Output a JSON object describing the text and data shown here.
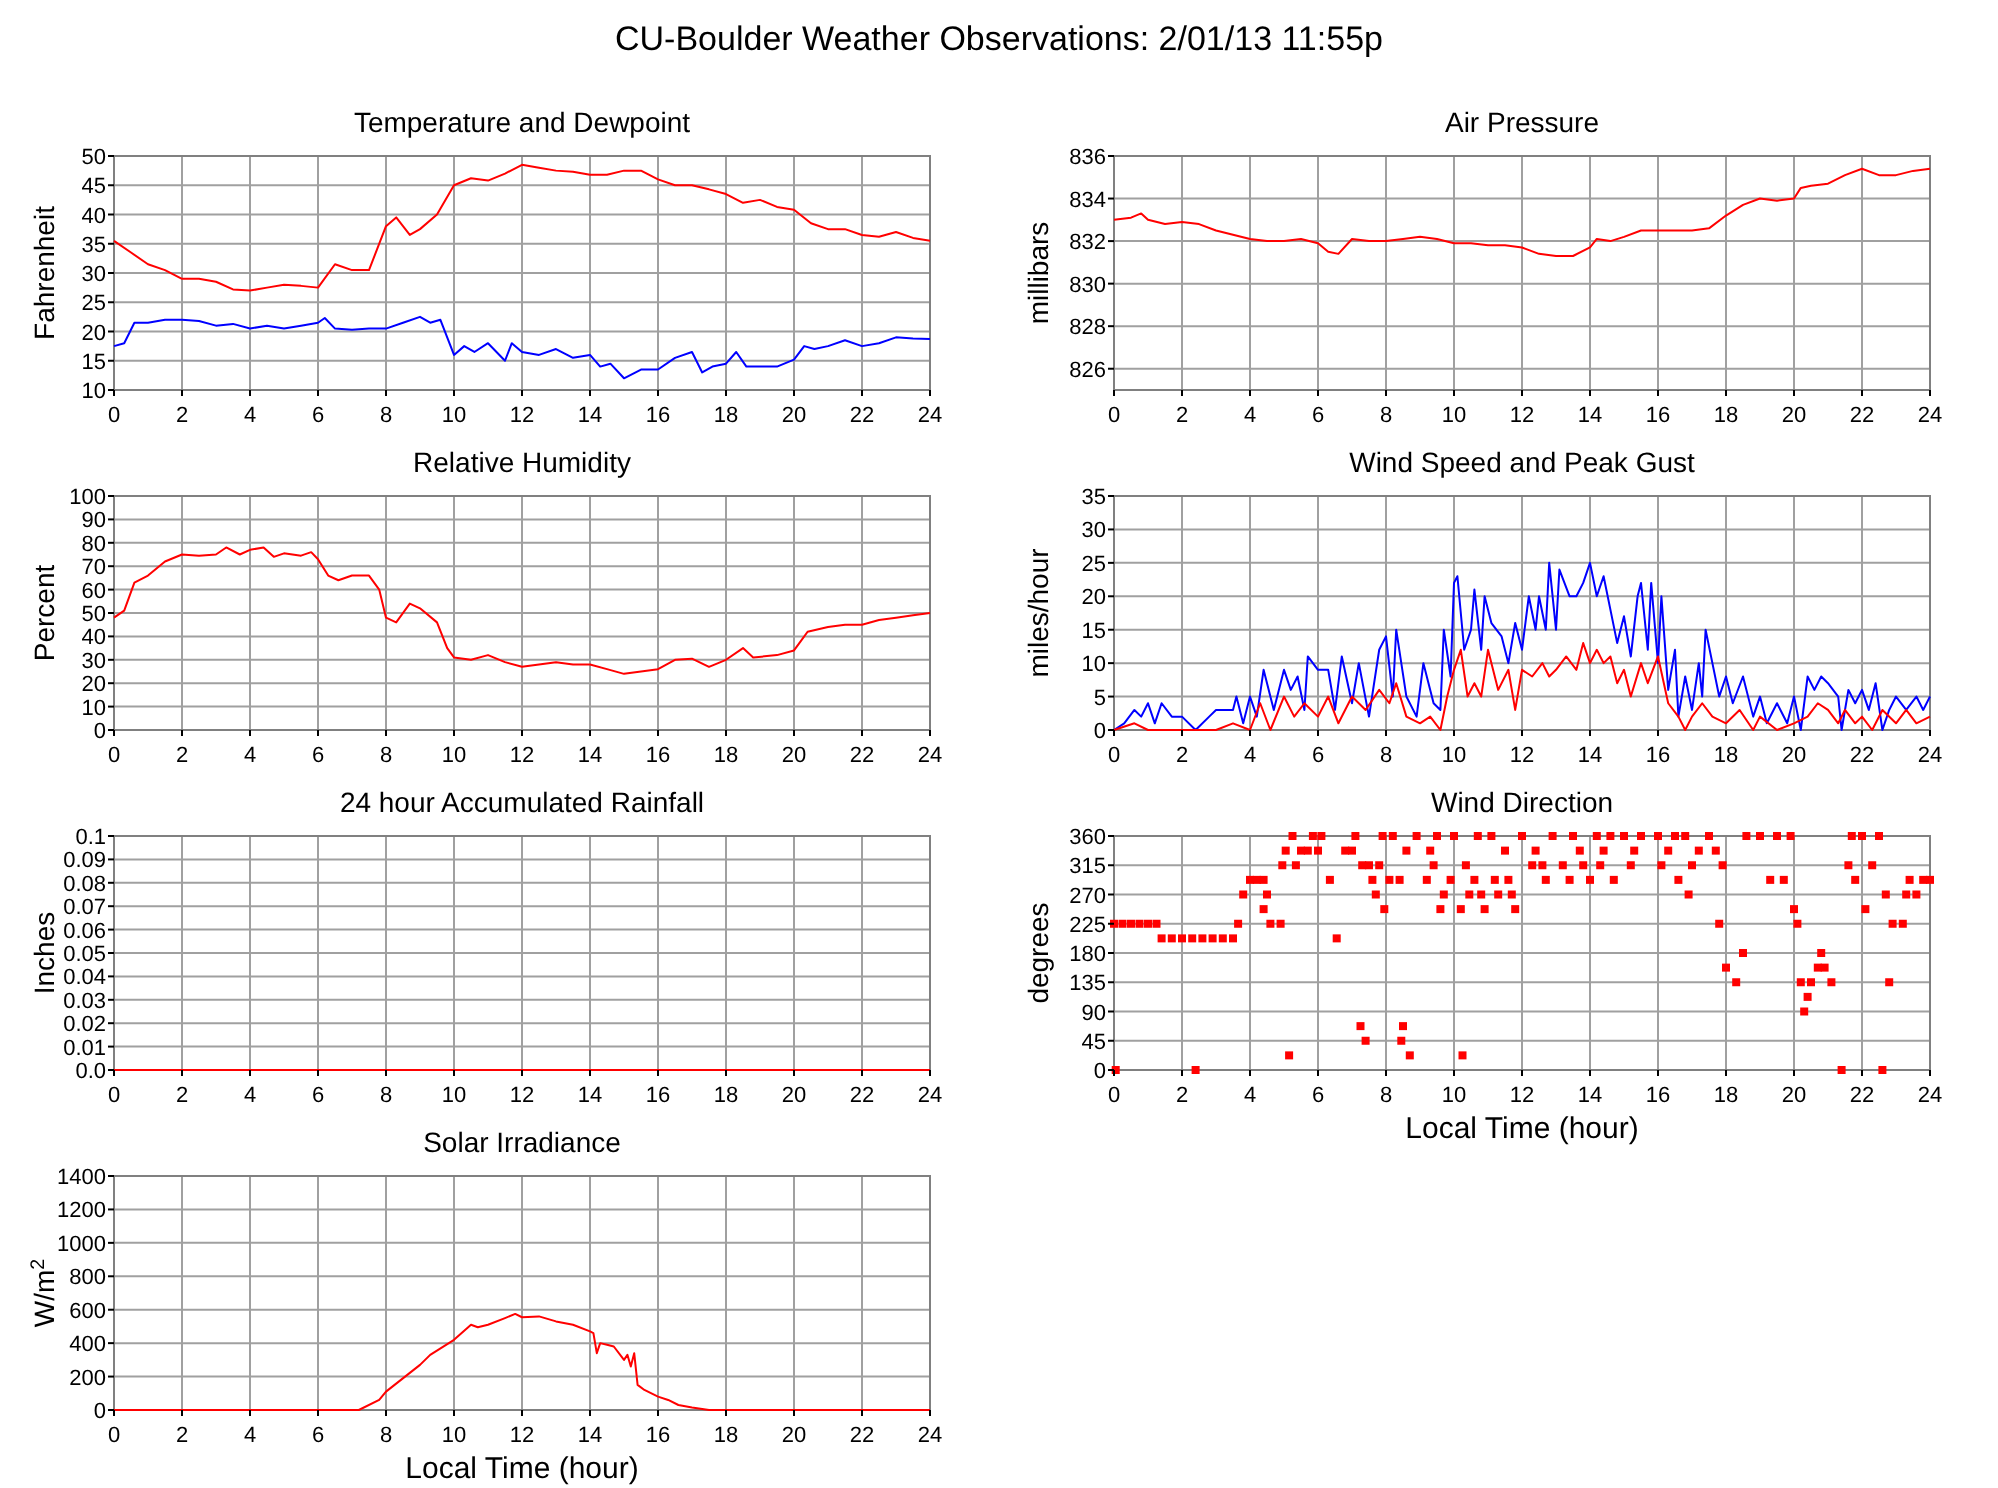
{
  "chart_data": [
    {
      "type": "line",
      "title": "Temperature and Dewpoint",
      "ylabel": "Fahrenheit",
      "annotations": [
        "CU-Boulder Weather Observations: 2/01/13 11:55p"
      ],
      "xlim": [
        0,
        24
      ],
      "xticks": [
        0,
        2,
        4,
        6,
        8,
        10,
        12,
        14,
        16,
        18,
        20,
        22,
        24
      ],
      "ylim": [
        10,
        50
      ],
      "yticks": [
        10,
        15,
        20,
        25,
        30,
        35,
        40,
        45,
        50
      ],
      "grid": true,
      "series": [
        {
          "color": "#ff0000",
          "x": [
            0,
            0.5,
            1,
            1.5,
            2,
            2.5,
            3,
            3.5,
            4,
            4.5,
            5,
            5.5,
            6,
            6.5,
            7,
            7.5,
            8,
            8.3,
            8.7,
            9,
            9.5,
            10,
            10.5,
            11,
            11.5,
            12,
            12.5,
            13,
            13.5,
            14,
            14.5,
            15,
            15.5,
            16,
            16.5,
            17,
            17.5,
            18,
            18.5,
            19,
            19.5,
            20,
            20.5,
            21,
            21.5,
            22,
            22.5,
            23,
            23.5,
            24
          ],
          "values": [
            35.5,
            33.5,
            31.5,
            30.5,
            29,
            29,
            28.5,
            27.2,
            27,
            27.5,
            28,
            27.8,
            27.5,
            31.5,
            30.5,
            30.5,
            38,
            39.5,
            36.5,
            37.5,
            40,
            45,
            46.2,
            45.8,
            47,
            48.5,
            48,
            47.5,
            47.3,
            46.8,
            46.8,
            47.5,
            47.5,
            46,
            45,
            45,
            44.3,
            43.5,
            42,
            42.5,
            41.3,
            40.8,
            38.5,
            37.5,
            37.5,
            36.5,
            36.2,
            37,
            36,
            35.5
          ]
        },
        {
          "color": "#0000ff",
          "x": [
            0,
            0.3,
            0.6,
            1,
            1.5,
            2,
            2.5,
            3,
            3.5,
            4,
            4.5,
            5,
            5.5,
            6,
            6.2,
            6.5,
            7,
            7.5,
            8,
            8.5,
            9,
            9.3,
            9.6,
            10,
            10.3,
            10.6,
            11,
            11.5,
            11.7,
            12,
            12.5,
            13,
            13.5,
            14,
            14.3,
            14.6,
            15,
            15.5,
            16,
            16.5,
            17,
            17.3,
            17.6,
            18,
            18.3,
            18.6,
            19,
            19.5,
            20,
            20.3,
            20.6,
            21,
            21.5,
            22,
            22.5,
            23,
            23.5,
            24
          ],
          "values": [
            17.5,
            18,
            21.5,
            21.5,
            22,
            22,
            21.8,
            21,
            21.3,
            20.5,
            21,
            20.5,
            21,
            21.5,
            22.3,
            20.5,
            20.3,
            20.5,
            20.5,
            21.5,
            22.5,
            21.5,
            22,
            16,
            17.5,
            16.5,
            18,
            15,
            18,
            16.5,
            16,
            17,
            15.5,
            16,
            14,
            14.5,
            12,
            13.5,
            13.5,
            15.5,
            16.5,
            13,
            14,
            14.5,
            16.5,
            14,
            14,
            14,
            15.2,
            17.5,
            17,
            17.5,
            18.5,
            17.5,
            18,
            19,
            18.8,
            18.7
          ]
        }
      ]
    },
    {
      "type": "line",
      "title": "Air Pressure",
      "ylabel": "millibars",
      "xlim": [
        0,
        24
      ],
      "xticks": [
        0,
        2,
        4,
        6,
        8,
        10,
        12,
        14,
        16,
        18,
        20,
        22,
        24
      ],
      "ylim": [
        825,
        836
      ],
      "yticks": [
        826,
        828,
        830,
        832,
        834,
        836
      ],
      "grid": true,
      "series": [
        {
          "color": "#ff0000",
          "x": [
            0,
            0.5,
            0.8,
            1,
            1.5,
            2,
            2.5,
            3,
            3.5,
            4,
            4.5,
            5,
            5.5,
            6,
            6.3,
            6.6,
            7,
            7.5,
            8,
            8.5,
            9,
            9.5,
            10,
            10.5,
            11,
            11.5,
            12,
            12.5,
            13,
            13.5,
            14,
            14.2,
            14.6,
            15,
            15.5,
            16,
            16.5,
            17,
            17.5,
            18,
            18.5,
            19,
            19.5,
            20,
            20.2,
            20.5,
            21,
            21.5,
            22,
            22.5,
            23,
            23.5,
            24
          ],
          "values": [
            833,
            833.1,
            833.3,
            833,
            832.8,
            832.9,
            832.8,
            832.5,
            832.3,
            832.1,
            832,
            832,
            832.1,
            831.9,
            831.5,
            831.4,
            832.1,
            832,
            832,
            832.1,
            832.2,
            832.1,
            831.9,
            831.9,
            831.8,
            831.8,
            831.7,
            831.4,
            831.3,
            831.3,
            831.7,
            832.1,
            832,
            832.2,
            832.5,
            832.5,
            832.5,
            832.5,
            832.6,
            833.2,
            833.7,
            834,
            833.9,
            834,
            834.5,
            834.6,
            834.7,
            835.1,
            835.4,
            835.1,
            835.1,
            835.3,
            835.4
          ]
        }
      ]
    },
    {
      "type": "line",
      "title": "Relative Humidity",
      "ylabel": "Percent",
      "xlim": [
        0,
        24
      ],
      "xticks": [
        0,
        2,
        4,
        6,
        8,
        10,
        12,
        14,
        16,
        18,
        20,
        22,
        24
      ],
      "ylim": [
        0,
        100
      ],
      "yticks": [
        0,
        10,
        20,
        30,
        40,
        50,
        60,
        70,
        80,
        90,
        100
      ],
      "grid": true,
      "series": [
        {
          "color": "#ff0000",
          "x": [
            0,
            0.3,
            0.6,
            1,
            1.5,
            2,
            2.5,
            3,
            3.3,
            3.7,
            4,
            4.4,
            4.7,
            5,
            5.5,
            5.8,
            6,
            6.3,
            6.6,
            7,
            7.5,
            7.8,
            8,
            8.3,
            8.7,
            9,
            9.5,
            9.8,
            10,
            10.5,
            11,
            11.5,
            12,
            12.5,
            13,
            13.5,
            14,
            14.5,
            15,
            15.5,
            16,
            16.5,
            17,
            17.5,
            18,
            18.5,
            18.8,
            19.5,
            20,
            20.2,
            20.4,
            21,
            21.5,
            22,
            22.5,
            23,
            23.5,
            24
          ],
          "values": [
            48,
            51,
            63,
            66,
            72,
            75,
            74.5,
            75,
            78,
            75,
            77,
            78,
            74,
            75.5,
            74.5,
            76,
            73,
            66,
            64,
            66,
            66,
            60,
            48,
            46,
            54,
            52,
            46,
            35,
            31,
            30,
            32,
            29,
            27,
            28,
            29,
            28,
            28,
            26,
            24,
            25,
            26,
            30,
            30.5,
            27,
            30,
            35,
            31,
            32,
            34,
            38,
            42,
            44,
            45,
            45,
            47,
            48,
            49,
            50
          ]
        }
      ]
    },
    {
      "type": "line",
      "title": "Wind Speed and Peak Gust",
      "ylabel": "miles/hour",
      "xlim": [
        0,
        24
      ],
      "xticks": [
        0,
        2,
        4,
        6,
        8,
        10,
        12,
        14,
        16,
        18,
        20,
        22,
        24
      ],
      "ylim": [
        0,
        35
      ],
      "yticks": [
        0,
        5,
        10,
        15,
        20,
        25,
        30,
        35
      ],
      "grid": true,
      "series": [
        {
          "color": "#0000ff",
          "x": [
            0,
            0.3,
            0.6,
            0.8,
            1,
            1.2,
            1.4,
            1.7,
            2,
            2.4,
            2.8,
            3,
            3.5,
            3.6,
            3.8,
            4,
            4.2,
            4.4,
            4.7,
            5,
            5.2,
            5.4,
            5.6,
            5.7,
            6,
            6.3,
            6.5,
            6.7,
            7,
            7.2,
            7.5,
            7.8,
            8,
            8.2,
            8.3,
            8.6,
            8.9,
            9.1,
            9.4,
            9.6,
            9.7,
            9.9,
            10,
            10.1,
            10.3,
            10.5,
            10.6,
            10.8,
            10.9,
            11.1,
            11.4,
            11.6,
            11.8,
            12,
            12.2,
            12.4,
            12.5,
            12.7,
            12.8,
            13,
            13.1,
            13.4,
            13.6,
            13.8,
            14,
            14.2,
            14.4,
            14.6,
            14.8,
            15,
            15.2,
            15.4,
            15.5,
            15.7,
            15.8,
            16,
            16.1,
            16.3,
            16.5,
            16.6,
            16.8,
            17,
            17.2,
            17.3,
            17.4,
            17.6,
            17.8,
            18,
            18.2,
            18.5,
            18.8,
            19,
            19.2,
            19.5,
            19.8,
            20,
            20.2,
            20.4,
            20.6,
            20.8,
            21,
            21.3,
            21.4,
            21.6,
            21.8,
            22,
            22.2,
            22.4,
            22.6,
            22.8,
            23,
            23.3,
            23.6,
            23.8,
            24
          ],
          "values": [
            0,
            1,
            3,
            2,
            4,
            1,
            4,
            2,
            2,
            0,
            2,
            3,
            3,
            5,
            1,
            5,
            2,
            9,
            3,
            9,
            6,
            8,
            3,
            11,
            9,
            9,
            3,
            11,
            4,
            10,
            2,
            12,
            14,
            5,
            15,
            5,
            2,
            10,
            4,
            3,
            15,
            8,
            22,
            23,
            12,
            15,
            21,
            12,
            20,
            16,
            14,
            10,
            16,
            12,
            20,
            15,
            20,
            15,
            25,
            15,
            24,
            20,
            20,
            22,
            25,
            20,
            23,
            18,
            13,
            17,
            11,
            20,
            22,
            12,
            22,
            10,
            20,
            6,
            12,
            2,
            8,
            3,
            10,
            5,
            15,
            10,
            5,
            8,
            4,
            8,
            2,
            5,
            1,
            4,
            1,
            5,
            0,
            8,
            6,
            8,
            7,
            5,
            0,
            6,
            4,
            6,
            3,
            7,
            0,
            3,
            5,
            3,
            5,
            3,
            5
          ]
        },
        {
          "color": "#ff0000",
          "x": [
            0,
            0.6,
            1,
            2,
            3,
            3.5,
            4,
            4.3,
            4.6,
            5,
            5.3,
            5.6,
            6,
            6.3,
            6.6,
            7,
            7.4,
            7.8,
            8.1,
            8.3,
            8.6,
            9,
            9.3,
            9.6,
            9.8,
            10,
            10.2,
            10.4,
            10.6,
            10.8,
            11,
            11.3,
            11.6,
            11.8,
            12,
            12.3,
            12.6,
            12.8,
            13,
            13.3,
            13.6,
            13.8,
            14,
            14.2,
            14.4,
            14.6,
            14.8,
            15,
            15.2,
            15.5,
            15.7,
            16,
            16.3,
            16.6,
            16.8,
            17,
            17.3,
            17.6,
            18,
            18.4,
            18.8,
            19,
            19.5,
            20,
            20.4,
            20.7,
            21,
            21.3,
            21.5,
            21.8,
            22,
            22.3,
            22.6,
            23,
            23.3,
            23.6,
            24
          ],
          "values": [
            0,
            1,
            0,
            0,
            0,
            1,
            0,
            4,
            0,
            5,
            2,
            4,
            2,
            5,
            1,
            5,
            3,
            6,
            4,
            7,
            2,
            1,
            2,
            0,
            5,
            9,
            12,
            5,
            7,
            5,
            12,
            6,
            9,
            3,
            9,
            8,
            10,
            8,
            9,
            11,
            9,
            13,
            10,
            12,
            10,
            11,
            7,
            9,
            5,
            10,
            7,
            11,
            4,
            2,
            0,
            2,
            4,
            2,
            1,
            3,
            0,
            2,
            0,
            1,
            2,
            4,
            3,
            1,
            3,
            1,
            2,
            0,
            3,
            1,
            3,
            1,
            2
          ]
        }
      ]
    },
    {
      "type": "line",
      "title": "24 hour Accumulated Rainfall",
      "ylabel": "Inches",
      "xlim": [
        0,
        24
      ],
      "xticks": [
        0,
        2,
        4,
        6,
        8,
        10,
        12,
        14,
        16,
        18,
        20,
        22,
        24
      ],
      "ylim": [
        0,
        0.1
      ],
      "yticks": [
        {
          "value": 0,
          "label": "0.0"
        },
        0.01,
        0.02,
        0.03,
        0.04,
        0.05,
        0.06,
        0.07,
        0.08,
        0.09,
        0.1
      ],
      "grid": true,
      "series": [
        {
          "color": "#ff0000",
          "x": [
            0,
            24
          ],
          "values": [
            0,
            0
          ]
        }
      ]
    },
    {
      "type": "scatter",
      "title": "Wind Direction",
      "ylabel": "degrees",
      "xlabel": "Local Time (hour)",
      "marker": "square",
      "xlim": [
        0,
        24
      ],
      "xticks": [
        0,
        2,
        4,
        6,
        8,
        10,
        12,
        14,
        16,
        18,
        20,
        22,
        24
      ],
      "ylim": [
        0,
        360
      ],
      "yticks": [
        0,
        45,
        90,
        135,
        180,
        225,
        270,
        315,
        360
      ],
      "grid": true,
      "series": [
        {
          "color": "#ff0000",
          "x": [
            0,
            0.05,
            0.25,
            0.5,
            0.75,
            1,
            1.25,
            1.4,
            1.7,
            2,
            2.3,
            2.4,
            2.6,
            2.9,
            3.2,
            3.5,
            3.65,
            3.8,
            4,
            4.2,
            4.4,
            4.4,
            4.5,
            4.6,
            4.9,
            4.95,
            5.05,
            5.15,
            5.25,
            5.35,
            5.5,
            5.7,
            5.85,
            6,
            6.1,
            6.35,
            6.55,
            6.8,
            7,
            7.1,
            7.25,
            7.3,
            7.4,
            7.5,
            7.6,
            7.7,
            7.8,
            7.9,
            7.95,
            8.1,
            8.2,
            8.4,
            8.45,
            8.5,
            8.6,
            8.7,
            8.9,
            9.2,
            9.3,
            9.4,
            9.5,
            9.6,
            9.7,
            9.9,
            10,
            10.2,
            10.25,
            10.35,
            10.45,
            10.6,
            10.7,
            10.8,
            10.9,
            11.1,
            11.2,
            11.3,
            11.5,
            11.6,
            11.7,
            11.8,
            12,
            12.3,
            12.4,
            12.6,
            12.7,
            12.9,
            13.2,
            13.4,
            13.5,
            13.7,
            13.8,
            14,
            14.2,
            14.3,
            14.4,
            14.6,
            14.7,
            15,
            15.2,
            15.3,
            15.5,
            16,
            16.1,
            16.3,
            16.5,
            16.6,
            16.8,
            16.9,
            17,
            17.2,
            17.5,
            17.7,
            17.8,
            17.9,
            18,
            18.3,
            18.5,
            18.6,
            19,
            19.3,
            19.5,
            19.7,
            19.9,
            20,
            20.1,
            20.2,
            20.3,
            20.4,
            20.5,
            20.7,
            20.8,
            20.9,
            21.1,
            21.4,
            21.6,
            21.7,
            21.8,
            22,
            22.1,
            22.3,
            22.5,
            22.6,
            22.7,
            22.8,
            22.9,
            23.2,
            23.3,
            23.4,
            23.6,
            23.8,
            24
          ],
          "values": [
            225,
            0,
            225,
            225,
            225,
            225,
            225,
            202.5,
            202.5,
            202.5,
            202.5,
            0,
            202.5,
            202.5,
            202.5,
            202.5,
            225,
            270,
            292.5,
            292.5,
            292.5,
            247.5,
            270,
            225,
            225,
            315,
            337.5,
            22.5,
            360,
            315,
            337.5,
            337.5,
            360,
            337.5,
            360,
            292.5,
            202.5,
            337.5,
            337.5,
            360,
            67.5,
            315,
            45,
            315,
            292.5,
            270,
            315,
            360,
            247.5,
            292.5,
            360,
            292.5,
            45,
            67.5,
            337.5,
            22.5,
            360,
            292.5,
            337.5,
            315,
            360,
            247.5,
            270,
            292.5,
            360,
            247.5,
            22.5,
            315,
            270,
            292.5,
            360,
            270,
            247.5,
            360,
            292.5,
            270,
            337.5,
            292.5,
            270,
            247.5,
            360,
            315,
            337.5,
            315,
            292.5,
            360,
            315,
            292.5,
            360,
            337.5,
            315,
            292.5,
            360,
            315,
            337.5,
            360,
            292.5,
            360,
            315,
            337.5,
            360,
            360,
            315,
            337.5,
            360,
            292.5,
            360,
            270,
            315,
            337.5,
            360,
            337.5,
            225,
            315,
            157.5,
            135,
            180,
            360,
            360,
            292.5,
            360,
            292.5,
            360,
            247.5,
            225,
            135,
            90,
            112.5,
            135,
            157.5,
            180,
            157.5,
            135,
            0,
            315,
            360,
            292.5,
            360,
            247.5,
            315,
            360,
            0,
            270,
            135,
            225,
            225,
            270,
            292.5,
            270,
            292.5,
            292.5
          ]
        }
      ]
    },
    {
      "type": "line",
      "title": "Solar Irradiance",
      "ylabel": "W/m$^{2}$",
      "xlabel": "Local Time (hour)",
      "xlim": [
        0,
        24
      ],
      "xticks": [
        0,
        2,
        4,
        6,
        8,
        10,
        12,
        14,
        16,
        18,
        20,
        22,
        24
      ],
      "ylim": [
        0,
        1400
      ],
      "yticks": [
        0,
        200,
        400,
        600,
        800,
        1000,
        1200,
        1400
      ],
      "grid": true,
      "series": [
        {
          "color": "#ff0000",
          "x": [
            0,
            7.2,
            7.8,
            8,
            9,
            9.3,
            10,
            10.5,
            10.7,
            11,
            11.5,
            11.8,
            12,
            12.5,
            13,
            13.5,
            14,
            14.1,
            14.2,
            14.3,
            14.5,
            14.7,
            15,
            15.1,
            15.2,
            15.3,
            15.4,
            15.6,
            16,
            16.3,
            16.6,
            17,
            17.5,
            24
          ],
          "values": [
            0,
            0,
            60,
            110,
            270,
            330,
            420,
            510,
            495,
            510,
            550,
            575,
            555,
            560,
            530,
            510,
            470,
            460,
            340,
            400,
            390,
            380,
            300,
            330,
            260,
            340,
            150,
            120,
            80,
            60,
            30,
            15,
            0,
            0
          ]
        }
      ]
    }
  ]
}
